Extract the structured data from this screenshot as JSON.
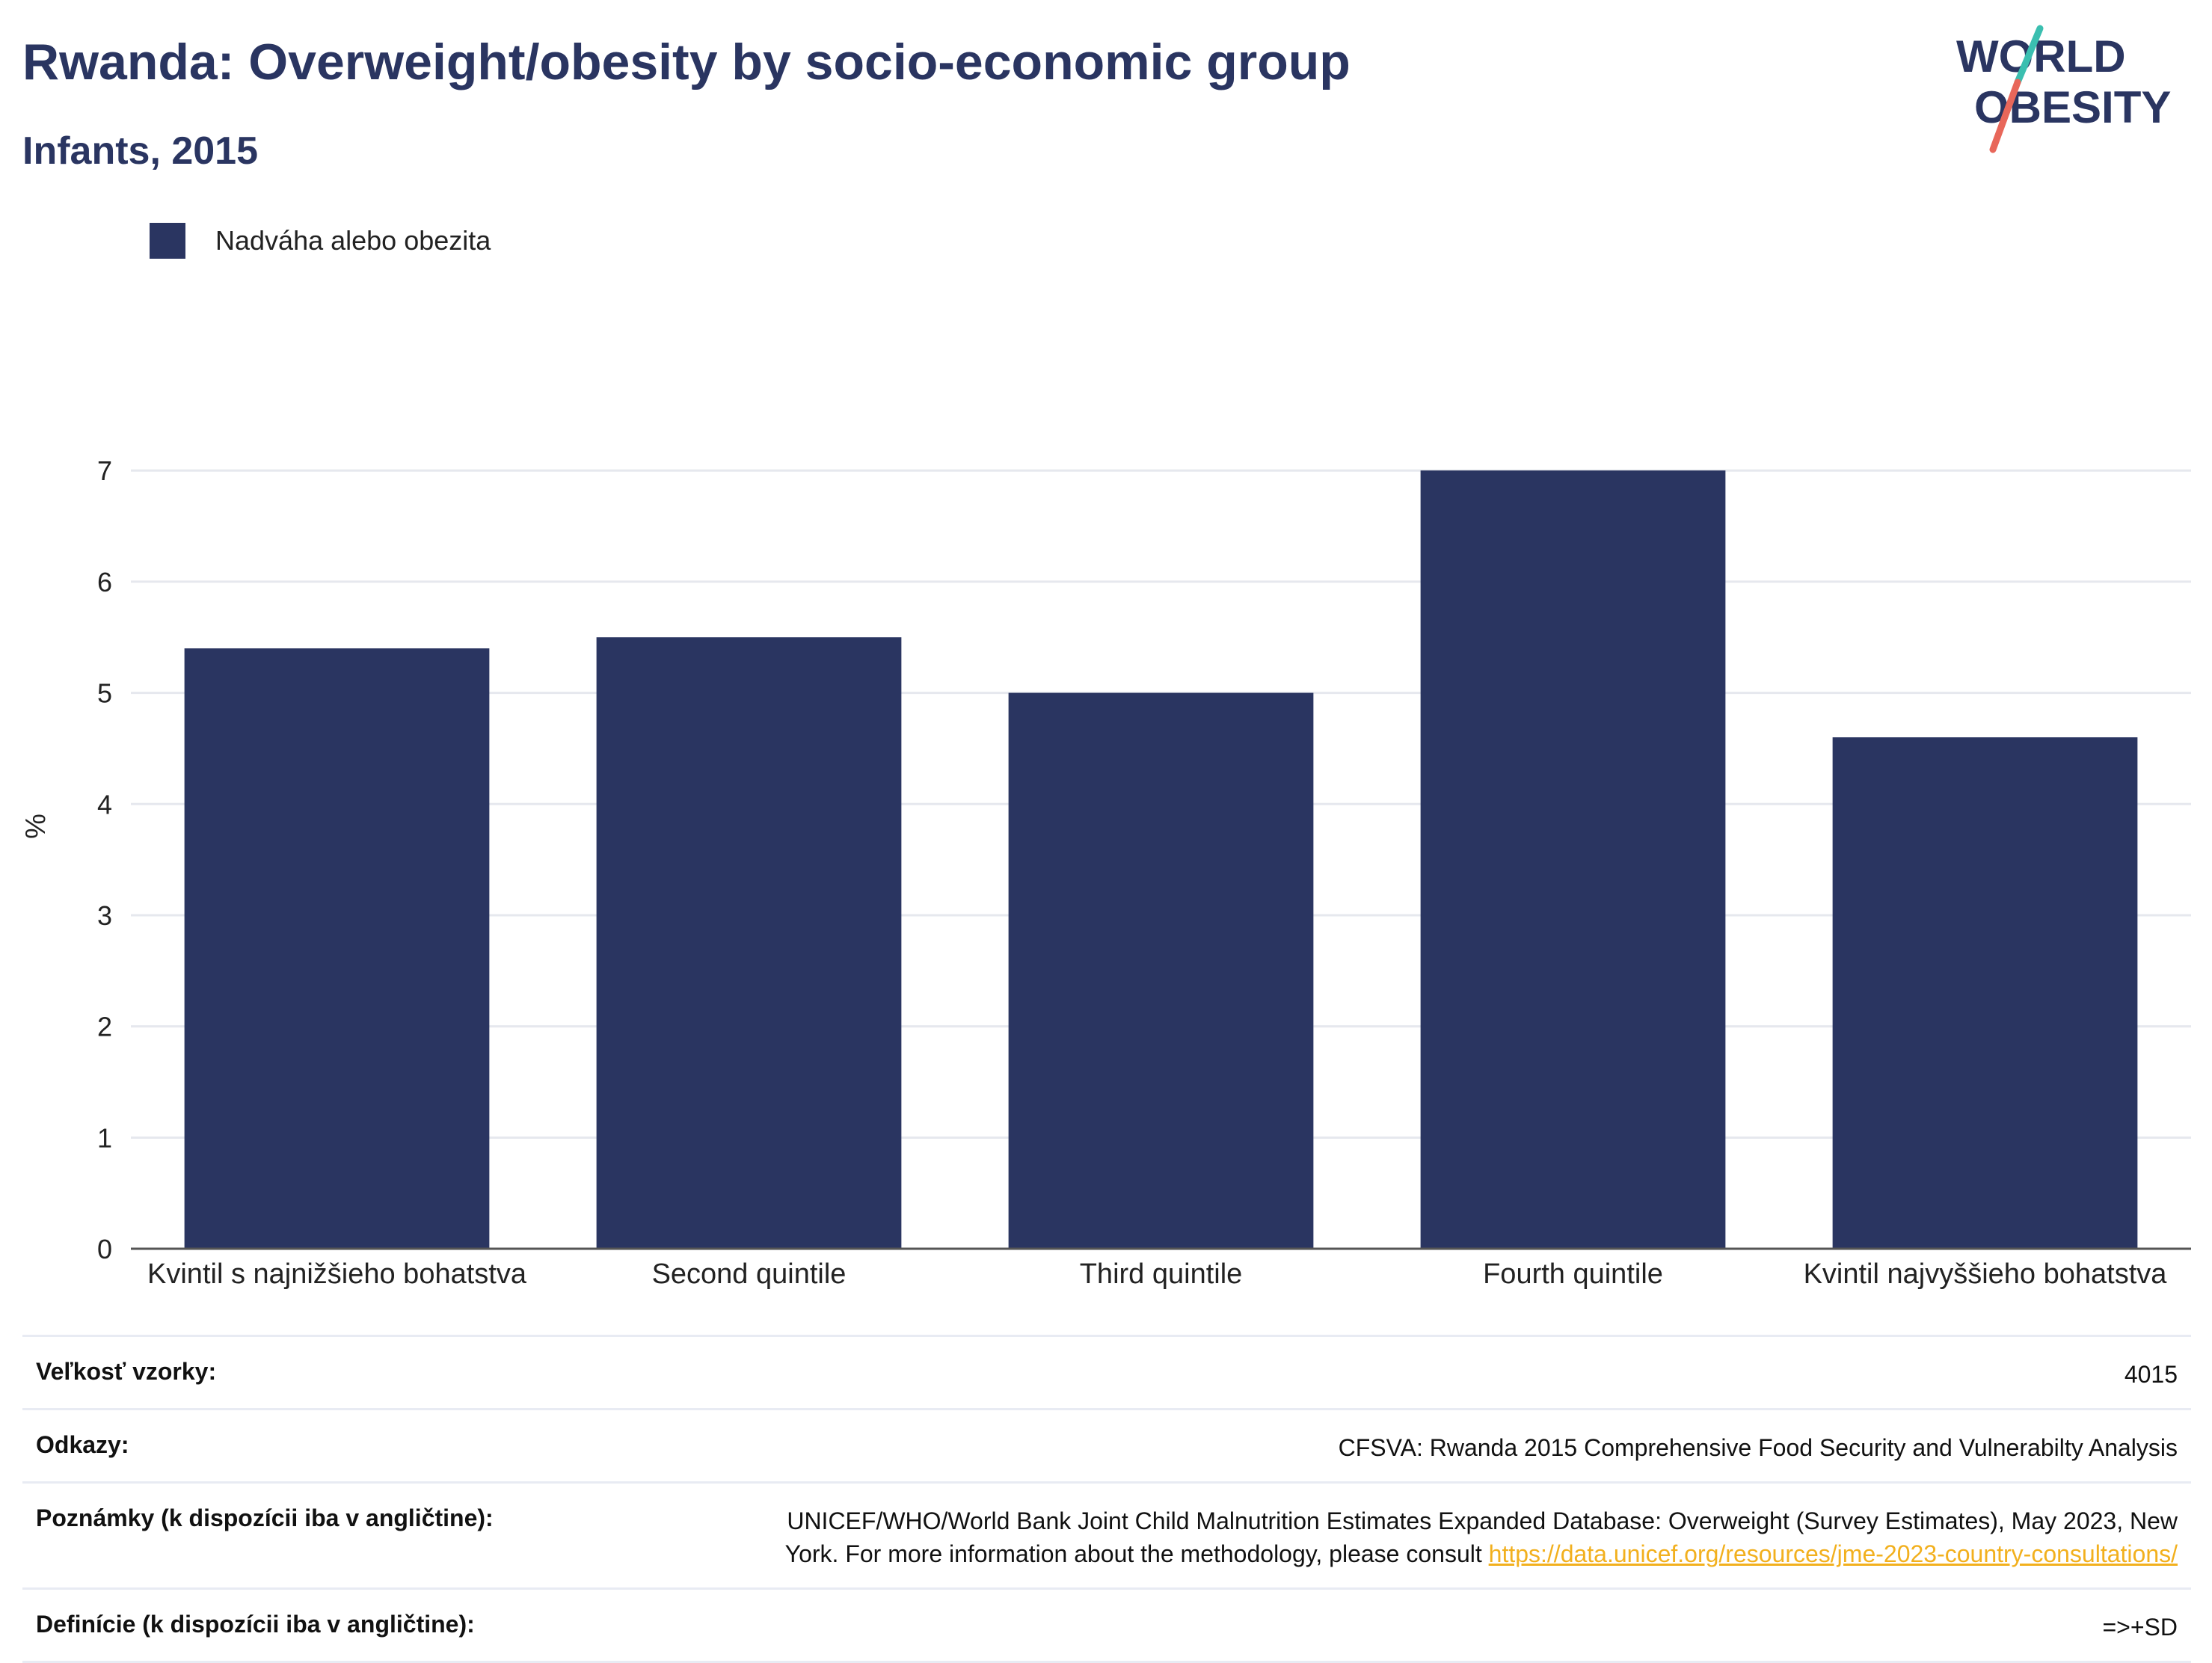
{
  "header": {
    "title": "Rwanda: Overweight/obesity by socio-economic group",
    "subtitle": "Infants, 2015"
  },
  "logo": {
    "line1": "WORLD",
    "line2": "OBESITY",
    "colors": {
      "text": "#2a3561",
      "slash_top": "#3bbfb0",
      "slash_bottom": "#e8675a"
    }
  },
  "legend": {
    "label": "Nadváha alebo obezita",
    "color": "#2a3561"
  },
  "chart_data": {
    "type": "bar",
    "categories": [
      "Kvintil s najnižšieho bohatstva",
      "Second quintile",
      "Third quintile",
      "Fourth quintile",
      "Kvintil najvyššieho bohatstva"
    ],
    "series": [
      {
        "name": "Nadváha alebo obezita",
        "values": [
          5.4,
          5.5,
          5.0,
          7.0,
          4.6
        ],
        "color": "#2a3561"
      }
    ],
    "ylabel": "%",
    "xlabel": "",
    "ylim": [
      0,
      7.6
    ],
    "yticks": [
      0,
      1,
      2,
      3,
      4,
      5,
      6,
      7
    ],
    "grid": true,
    "legend_position": "top-left"
  },
  "footer": {
    "sample_size_label": "Veľkosť vzorky:",
    "sample_size_value": "4015",
    "references_label": "Odkazy:",
    "references_value": "CFSVA: Rwanda 2015 Comprehensive Food Security and Vulnerabilty Analysis",
    "notes_label": "Poznámky (k dispozícii iba v angličtine):",
    "notes_text_1": "UNICEF/WHO/World Bank Joint Child Malnutrition Estimates Expanded Database: Overweight (Survey Estimates), May 2023, New",
    "notes_text_2": "York. For more information about the methodology, please consult ",
    "notes_link": "https://data.unicef.org/resources/jme-2023-country-consultations/",
    "definitions_label": "Definície (k dispozícii iba v angličtine):",
    "definitions_value": "=>+SD"
  }
}
